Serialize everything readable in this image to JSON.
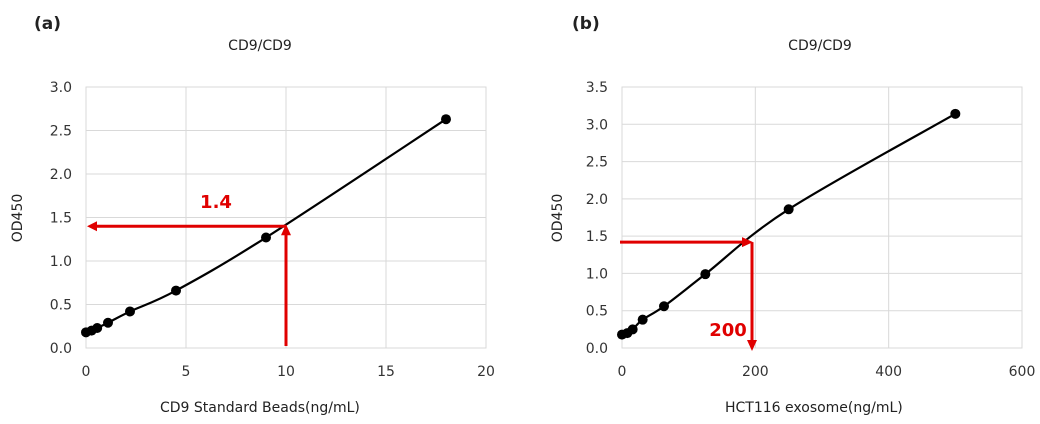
{
  "chart_data": [
    {
      "panel": "(a)",
      "type": "scatter",
      "title": "CD9/CD9",
      "xlabel": "CD9 Standard Beads(ng/mL)",
      "ylabel": "OD450",
      "xlim": [
        0,
        20
      ],
      "ylim": [
        0,
        3.0
      ],
      "xticks": [
        "0",
        "5",
        "10",
        "15",
        "20"
      ],
      "yticks": [
        "0.0",
        "0.5",
        "1.0",
        "1.5",
        "2.0",
        "2.5",
        "3.0"
      ],
      "grid": true,
      "series": [
        {
          "points": [
            [
              0.0,
              0.18
            ],
            [
              0.28,
              0.2
            ],
            [
              0.56,
              0.23
            ],
            [
              1.1,
              0.29
            ],
            [
              2.2,
              0.42
            ],
            [
              4.5,
              0.66
            ],
            [
              9.0,
              1.27
            ],
            [
              18.0,
              2.63
            ]
          ]
        }
      ],
      "annotation": {
        "label": "1.4",
        "x": 10,
        "y": 1.4,
        "color": "#e00000"
      }
    },
    {
      "panel": "(b)",
      "type": "scatter",
      "title": "CD9/CD9",
      "xlabel": "HCT116 exosome(ng/mL)",
      "ylabel": "OD450",
      "xlim": [
        0,
        600
      ],
      "ylim": [
        0,
        3.5
      ],
      "xticks": [
        "0",
        "200",
        "400",
        "600"
      ],
      "yticks": [
        "0.0",
        "0.5",
        "1.0",
        "1.5",
        "2.0",
        "2.5",
        "3.0",
        "3.5"
      ],
      "grid": true,
      "series": [
        {
          "points": [
            [
              0,
              0.18
            ],
            [
              8,
              0.2
            ],
            [
              16,
              0.25
            ],
            [
              31,
              0.38
            ],
            [
              63,
              0.56
            ],
            [
              125,
              0.99
            ],
            [
              250,
              1.86
            ],
            [
              500,
              3.14
            ]
          ]
        }
      ],
      "annotation": {
        "label": "200",
        "x": 195,
        "y": 1.42,
        "color": "#e00000"
      }
    }
  ]
}
